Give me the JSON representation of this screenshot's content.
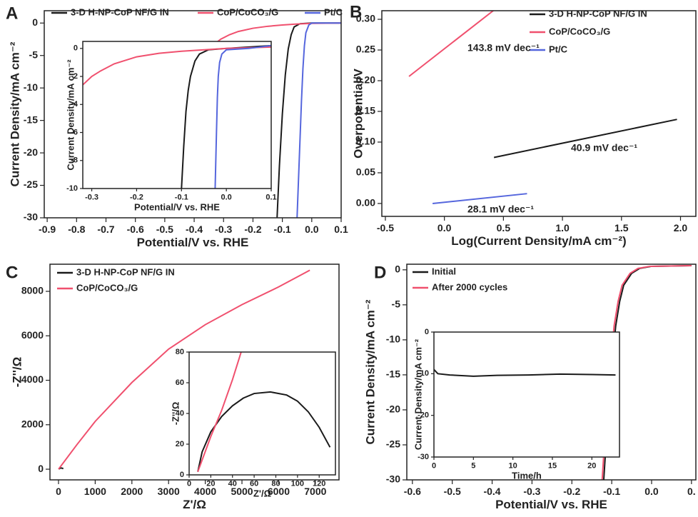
{
  "chart_data": [
    {
      "type": "line",
      "panel_label": "A",
      "xlabel": "Potential/V vs. RHE",
      "ylabel": "Current Density/mA cm⁻²",
      "xlim": [
        -0.91,
        0.1
      ],
      "ylim": [
        -30,
        1.9
      ],
      "xticks": [
        -0.9,
        -0.8,
        -0.7,
        -0.6,
        -0.5,
        -0.4,
        -0.3,
        -0.2,
        -0.1,
        {
          "value": 0,
          "label": "0.0"
        },
        0.1
      ],
      "yticks": [
        0,
        -5,
        -10,
        -15,
        -20,
        -25,
        -30
      ],
      "legend": "top",
      "series": [
        {
          "name": "3-D H-NP-CoP NF/G IN",
          "color": "#1a1a1a",
          "x": [
            -0.118,
            -0.11,
            -0.1,
            -0.09,
            -0.08,
            -0.07,
            -0.06,
            -0.04,
            0.0,
            0.1
          ],
          "values": [
            -30,
            -22,
            -14,
            -8,
            -4,
            -1.8,
            -0.6,
            -0.1,
            0,
            0
          ]
        },
        {
          "name": "CoP/CoCO₃/G",
          "color": "#f0506e",
          "x": [
            -0.33,
            -0.31,
            -0.28,
            -0.25,
            -0.2,
            -0.15,
            -0.1,
            -0.05,
            0.0,
            0.1
          ],
          "values": [
            -3.2,
            -2.5,
            -1.8,
            -1.3,
            -0.8,
            -0.5,
            -0.3,
            -0.15,
            -0.05,
            0
          ]
        },
        {
          "name": "Pt/C",
          "color": "#5566dd",
          "x": [
            -0.05,
            -0.045,
            -0.04,
            -0.035,
            -0.03,
            -0.025,
            -0.02,
            -0.01,
            0.0,
            0.1
          ],
          "values": [
            -30,
            -24,
            -18,
            -12,
            -7,
            -3.5,
            -1.5,
            -0.3,
            0,
            0
          ]
        }
      ]
    },
    {
      "type": "line",
      "xlabel": "Potential/V vs. RHE",
      "ylabel": "Current Density/mA cm⁻²",
      "xlim": [
        -0.32,
        0.1
      ],
      "ylim": [
        -10,
        0.5
      ],
      "xticks": [
        -0.3,
        -0.2,
        -0.1,
        {
          "value": 0,
          "label": "0.0"
        },
        0.1
      ],
      "yticks": [
        0,
        -2,
        -4,
        -6,
        -8,
        -10
      ],
      "series": [
        {
          "color": "#1a1a1a",
          "x": [
            -0.1,
            -0.095,
            -0.09,
            -0.085,
            -0.08,
            -0.07,
            -0.06,
            -0.04,
            0.0,
            0.1
          ],
          "values": [
            -10,
            -7,
            -4.5,
            -3,
            -2,
            -0.9,
            -0.4,
            -0.1,
            0,
            0.2
          ]
        },
        {
          "color": "#f0506e",
          "x": [
            -0.32,
            -0.3,
            -0.28,
            -0.25,
            -0.2,
            -0.15,
            -0.1,
            -0.05,
            0.0,
            0.05,
            0.1
          ],
          "values": [
            -2.6,
            -2,
            -1.6,
            -1.1,
            -0.6,
            -0.35,
            -0.2,
            -0.1,
            0,
            0.05,
            0.1
          ]
        },
        {
          "color": "#5566dd",
          "x": [
            -0.025,
            -0.022,
            -0.02,
            -0.018,
            -0.015,
            -0.01,
            0.0,
            0.05,
            0.1
          ],
          "values": [
            -10,
            -6,
            -3.5,
            -2,
            -1,
            -0.4,
            -0.1,
            0,
            0.2
          ]
        }
      ]
    },
    {
      "type": "line",
      "panel_label": "B",
      "xlabel": "Log(Current Density/mA cm⁻²)",
      "ylabel": "Overpotential/V",
      "xlim": [
        -0.53,
        2.13
      ],
      "ylim": [
        -0.021,
        0.314
      ],
      "xticks": [
        -0.5,
        {
          "value": 0,
          "label": "0.0"
        },
        0.5,
        {
          "value": 1,
          "label": "1.0"
        },
        1.5,
        {
          "value": 2,
          "label": "2.0"
        }
      ],
      "yticks": [
        {
          "value": 0,
          "label": "0.00"
        },
        {
          "value": 0.05,
          "label": "0.05"
        },
        {
          "value": 0.1,
          "label": "0.10"
        },
        {
          "value": 0.15,
          "label": "0.15"
        },
        {
          "value": 0.2,
          "label": "0.20"
        },
        {
          "value": 0.25,
          "label": "0.25"
        },
        {
          "value": 0.3,
          "label": "0.30"
        }
      ],
      "legend": "upper right",
      "series": [
        {
          "name": "3-D H-NP-CoP NF/G IN",
          "color": "#1a1a1a",
          "x": [
            0.42,
            1.97
          ],
          "values": [
            0.075,
            0.137
          ]
        },
        {
          "name": "CoP/CoCO₃/G",
          "color": "#f0506e",
          "x": [
            -0.3,
            0.42
          ],
          "values": [
            0.207,
            0.315
          ]
        },
        {
          "name": "Pt/C",
          "color": "#5566dd",
          "x": [
            -0.1,
            0.7
          ],
          "values": [
            0.0,
            0.016
          ]
        }
      ],
      "annotations": [
        {
          "text": "143.8 mV dec⁻¹",
          "color": "#f0506e"
        },
        {
          "text": "40.9 mV dec⁻¹",
          "color": "#1a1a1a"
        },
        {
          "text": "28.1 mV dec⁻¹",
          "color": "#5566dd"
        }
      ]
    },
    {
      "type": "line",
      "panel_label": "C",
      "xlabel": "Z'/Ω",
      "ylabel": "-Z''/Ω",
      "xlim": [
        -233,
        7645
      ],
      "ylim": [
        -480,
        9220
      ],
      "xticks": [
        0,
        1000,
        2000,
        3000,
        4000,
        5000,
        6000,
        7000
      ],
      "yticks": [
        0,
        2000,
        4000,
        6000,
        8000
      ],
      "legend": "upper left",
      "series": [
        {
          "name": "3-D H-NP-CoP NF/G IN",
          "color": "#1a1a1a",
          "x": [
            8,
            40,
            75,
            110,
            130
          ],
          "values": [
            2,
            45,
            54,
            40,
            18
          ]
        },
        {
          "name": "CoP/CoCO₃/G",
          "color": "#f0506e",
          "x": [
            0,
            500,
            1000,
            2000,
            3000,
            4000,
            5000,
            6000,
            6850
          ],
          "values": [
            0,
            1100,
            2150,
            3900,
            5400,
            6500,
            7400,
            8200,
            8950
          ]
        }
      ]
    },
    {
      "type": "line",
      "xlabel": "Z'/Ω",
      "ylabel": "-Z''/Ω",
      "xlim": [
        0,
        135
      ],
      "ylim": [
        0,
        80
      ],
      "xticks": [
        0,
        20,
        40,
        60,
        80,
        100,
        120
      ],
      "yticks": [
        0,
        20,
        40,
        60,
        80
      ],
      "series": [
        {
          "color": "#1a1a1a",
          "x": [
            8,
            12,
            20,
            30,
            40,
            50,
            60,
            75,
            90,
            100,
            110,
            120,
            130
          ],
          "values": [
            2,
            15,
            28,
            38,
            45,
            50,
            53,
            54,
            52,
            48,
            41,
            31,
            18
          ]
        },
        {
          "color": "#f0506e",
          "x": [
            8,
            20,
            30,
            40,
            48
          ],
          "values": [
            2,
            25,
            42,
            62,
            80
          ]
        }
      ]
    },
    {
      "type": "line",
      "panel_label": "D",
      "xlabel": "Potential/V vs. RHE",
      "ylabel": "Current Density/mA cm⁻²",
      "xlim": [
        -0.614,
        0.111
      ],
      "ylim": [
        -30,
        0.8
      ],
      "xticks": [
        -0.6,
        -0.5,
        -0.4,
        -0.3,
        -0.2,
        -0.1,
        {
          "value": 0,
          "label": "0.0"
        },
        {
          "value": 0.1,
          "label": "0."
        }
      ],
      "yticks": [
        0,
        -5,
        -10,
        -15,
        -20,
        -25,
        -30
      ],
      "legend": "upper left",
      "series": [
        {
          "name": "Initial",
          "color": "#1a1a1a",
          "x": [
            -0.12,
            -0.11,
            -0.1,
            -0.09,
            -0.08,
            -0.07,
            -0.05,
            -0.03,
            0.0,
            0.1
          ],
          "values": [
            -30,
            -21,
            -14,
            -8,
            -4.5,
            -2.2,
            -0.5,
            0.2,
            0.5,
            0.6
          ]
        },
        {
          "name": "After 2000 cycles",
          "color": "#f0506e",
          "x": [
            -0.124,
            -0.114,
            -0.104,
            -0.094,
            -0.084,
            -0.074,
            -0.054,
            -0.034,
            -0.004,
            0.1
          ],
          "values": [
            -30,
            -21,
            -14,
            -8,
            -4.5,
            -2.2,
            -0.5,
            0.2,
            0.5,
            0.6
          ]
        }
      ]
    },
    {
      "type": "line",
      "xlabel": "Time/h",
      "ylabel": "Current Density/mA cm⁻²",
      "xlim": [
        0,
        23.5
      ],
      "ylim": [
        -30,
        0
      ],
      "xticks": [
        0,
        5,
        10,
        15,
        20
      ],
      "yticks": [
        0,
        -10,
        -20,
        -30
      ],
      "series": [
        {
          "color": "#1a1a1a",
          "x": [
            0,
            0.5,
            2,
            5,
            8,
            12,
            16,
            20,
            23
          ],
          "values": [
            -9,
            -10,
            -10.3,
            -10.6,
            -10.4,
            -10.3,
            -10.1,
            -10.2,
            -10.3
          ]
        }
      ]
    }
  ]
}
